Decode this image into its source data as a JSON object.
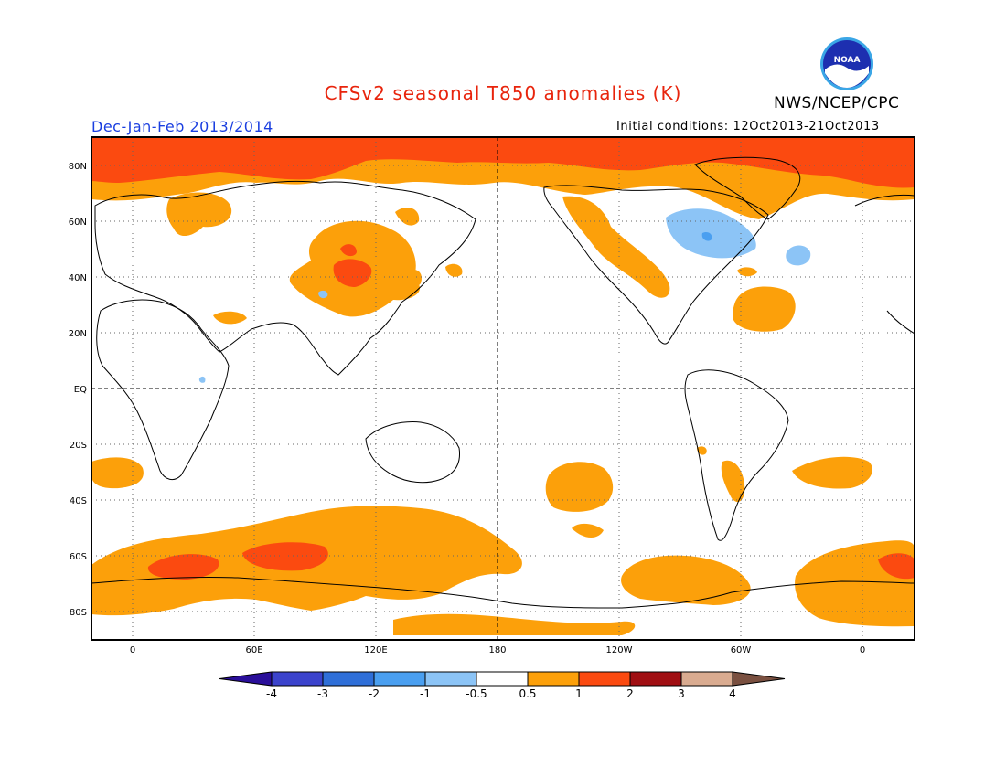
{
  "header": {
    "title": "CFSv2 seasonal T850 anomalies (K)",
    "organization": "NWS/NCEP/CPC",
    "season": "Dec-Jan-Feb 2013/2014",
    "initial_conditions": "Initial conditions: 12Oct2013-21Oct2013",
    "logo_text": "NOAA"
  },
  "map": {
    "projection": "equirectangular",
    "lon_labels": [
      "0",
      "60E",
      "120E",
      "180",
      "120W",
      "60W",
      "0"
    ],
    "lat_labels": [
      "80N",
      "60N",
      "40N",
      "20N",
      "EQ",
      "20S",
      "40S",
      "60S",
      "80S"
    ]
  },
  "colorbar": {
    "tick_labels": [
      "-4",
      "-3",
      "-2",
      "-1",
      "-0.5",
      "0.5",
      "1",
      "2",
      "3",
      "4"
    ],
    "colors": [
      "#2a0f9a",
      "#3b43cc",
      "#2f6fd8",
      "#4a9ff0",
      "#8cc4f6",
      "#ffffff",
      "#fca00a",
      "#fb4a10",
      "#a00e12",
      "#d9ab90",
      "#7a5040"
    ]
  },
  "colors": {
    "land_outline": "#000000",
    "warm_1": "#fca00a",
    "warm_2": "#fb4a10",
    "cool_1": "#8cc4f6",
    "cool_2": "#4a9ff0"
  }
}
